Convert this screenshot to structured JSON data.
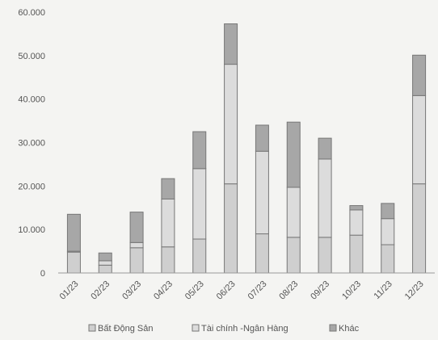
{
  "chart_data": {
    "type": "bar",
    "stacked": true,
    "title": "",
    "xlabel": "",
    "ylabel": "",
    "categories": [
      "01/23",
      "02/23",
      "03/23",
      "04/23",
      "05/23",
      "06/23",
      "07/23",
      "08/23",
      "09/23",
      "10/23",
      "11/23",
      "12/23"
    ],
    "series": [
      {
        "name": "Bất Động Sản",
        "values": [
          4800,
          1800,
          5800,
          6000,
          7800,
          20500,
          9000,
          8200,
          8200,
          8700,
          6500,
          20500
        ],
        "color": "#cfcfcf"
      },
      {
        "name": "Tài chính -Ngân Hàng",
        "values": [
          200,
          1000,
          1200,
          11000,
          16200,
          27500,
          19000,
          11500,
          18000,
          5800,
          6000,
          20300
        ],
        "color": "#dcdcdc"
      },
      {
        "name": "Khác",
        "values": [
          8500,
          1800,
          7000,
          4700,
          8500,
          9300,
          6000,
          15000,
          4800,
          1000,
          3500,
          9300
        ],
        "color": "#a7a7a7"
      }
    ],
    "ylim": [
      0,
      60000
    ],
    "yticks": [
      0,
      10000,
      20000,
      30000,
      40000,
      50000,
      60000
    ],
    "ytick_labels": [
      "0",
      "10.000",
      "20.000",
      "30.000",
      "40.000",
      "50.000",
      "60.000"
    ],
    "grid": false,
    "legend_position": "bottom"
  }
}
